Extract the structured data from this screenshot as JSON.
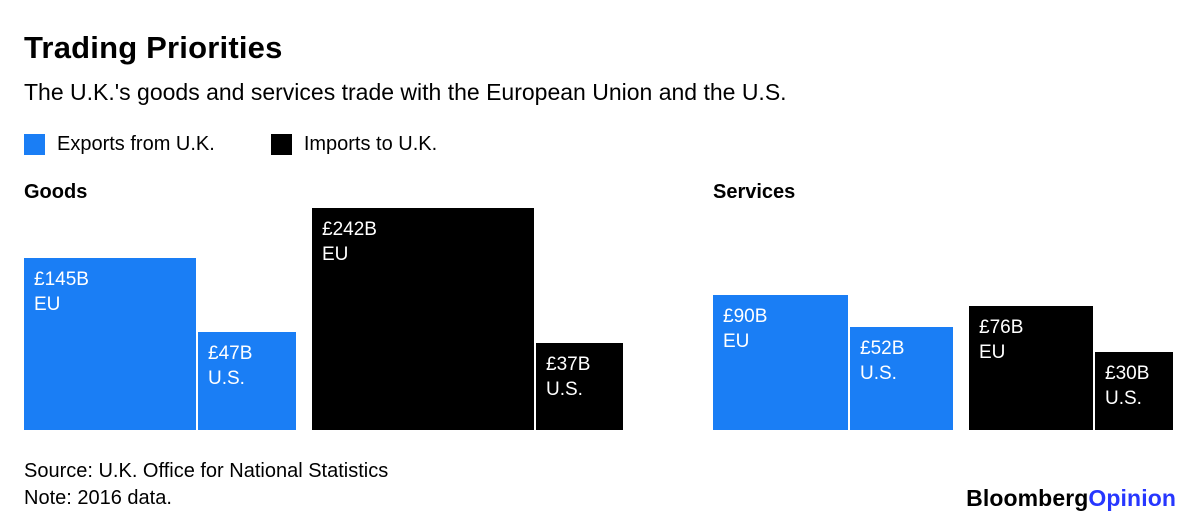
{
  "header": {
    "title": "Trading Priorities",
    "subtitle": "The U.K.'s goods and services trade with the European Union and the U.S."
  },
  "colors": {
    "export_blue": "#1a7ef5",
    "import_black": "#000000",
    "opinion_blue": "#2737ff",
    "text_black": "#000000"
  },
  "legend": {
    "items": [
      {
        "label": "Exports from U.K.",
        "color": "#1a7ef5"
      },
      {
        "label": "Imports to U.K.",
        "color": "#000000"
      }
    ]
  },
  "footer": {
    "source": "Source: U.K. Office for National Statistics",
    "note": "Note: 2016 data."
  },
  "brand": {
    "name": "Bloomberg",
    "product": "Opinion"
  },
  "chart_data": {
    "type": "bar",
    "title": "Trading Priorities",
    "subtitle": "The U.K.'s goods and services trade with the European Union and the U.S.",
    "unit": "GBP billions",
    "legend": [
      "Exports from U.K.",
      "Imports to U.K."
    ],
    "legend_position": "top-left",
    "grid": false,
    "axes_shown": false,
    "style_note": "Square-ish bars, side length proportional to sqrt(value), bottom-aligned, value labels inside top-left in white",
    "groups": [
      {
        "label": "Goods",
        "bars": [
          {
            "series": "Exports from U.K.",
            "region": "EU",
            "value": 145,
            "value_label": "£145B"
          },
          {
            "series": "Exports from U.K.",
            "region": "U.S.",
            "value": 47,
            "value_label": "£47B"
          },
          {
            "series": "Imports to U.K.",
            "region": "EU",
            "value": 242,
            "value_label": "£242B"
          },
          {
            "series": "Imports to U.K.",
            "region": "U.S.",
            "value": 37,
            "value_label": "£37B"
          }
        ]
      },
      {
        "label": "Services",
        "bars": [
          {
            "series": "Exports from U.K.",
            "region": "EU",
            "value": 90,
            "value_label": "£90B"
          },
          {
            "series": "Exports from U.K.",
            "region": "U.S.",
            "value": 52,
            "value_label": "£52B"
          },
          {
            "series": "Imports to U.K.",
            "region": "EU",
            "value": 76,
            "value_label": "£76B"
          },
          {
            "series": "Imports to U.K.",
            "region": "U.S.",
            "value": 30,
            "value_label": "£30B"
          }
        ]
      }
    ]
  }
}
